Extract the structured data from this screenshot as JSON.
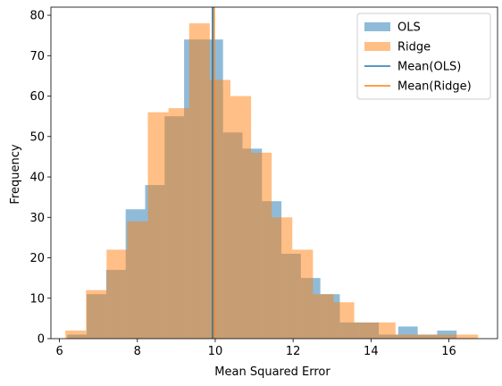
{
  "chart_data": {
    "type": "bar",
    "title": "",
    "xlabel": "Mean Squared Error",
    "ylabel": "Frequency",
    "xlim": [
      5.78,
      17.25
    ],
    "ylim": [
      0,
      82
    ],
    "xticks": [
      6,
      8,
      10,
      12,
      14,
      16
    ],
    "yticks": [
      0,
      10,
      20,
      30,
      40,
      50,
      60,
      70,
      80
    ],
    "grid": false,
    "legend_position": "top-right",
    "series": [
      {
        "name": "OLS",
        "kind": "histogram",
        "color": "#1f77b4",
        "alpha": 0.5,
        "bin_edges": [
          6.2,
          6.7,
          7.2,
          7.7,
          8.2,
          8.7,
          9.2,
          9.7,
          10.2,
          10.7,
          11.2,
          11.7,
          12.2,
          12.7,
          13.2,
          13.7,
          14.2,
          14.7,
          15.2,
          15.7,
          16.2
        ],
        "counts": [
          1,
          11,
          17,
          32,
          38,
          55,
          74,
          74,
          51,
          47,
          34,
          21,
          15,
          11,
          4,
          4,
          1,
          3,
          1,
          2
        ]
      },
      {
        "name": "Ridge",
        "kind": "histogram",
        "color": "#ff7f0e",
        "alpha": 0.5,
        "bin_edges": [
          6.15,
          6.68,
          7.21,
          7.74,
          8.27,
          8.8,
          9.33,
          9.86,
          10.39,
          10.92,
          11.45,
          11.98,
          12.51,
          13.04,
          13.57,
          14.1,
          14.63,
          15.16,
          15.69,
          16.22,
          16.75
        ],
        "counts": [
          2,
          12,
          22,
          29,
          56,
          57,
          78,
          64,
          60,
          46,
          30,
          22,
          11,
          9,
          4,
          4,
          1,
          1,
          1,
          1
        ]
      },
      {
        "name": "Mean(OLS)",
        "kind": "vline",
        "color": "#1f77b4",
        "x": 9.93
      },
      {
        "name": "Mean(Ridge)",
        "kind": "vline",
        "color": "#ff7f0e",
        "x": 9.97
      }
    ]
  }
}
